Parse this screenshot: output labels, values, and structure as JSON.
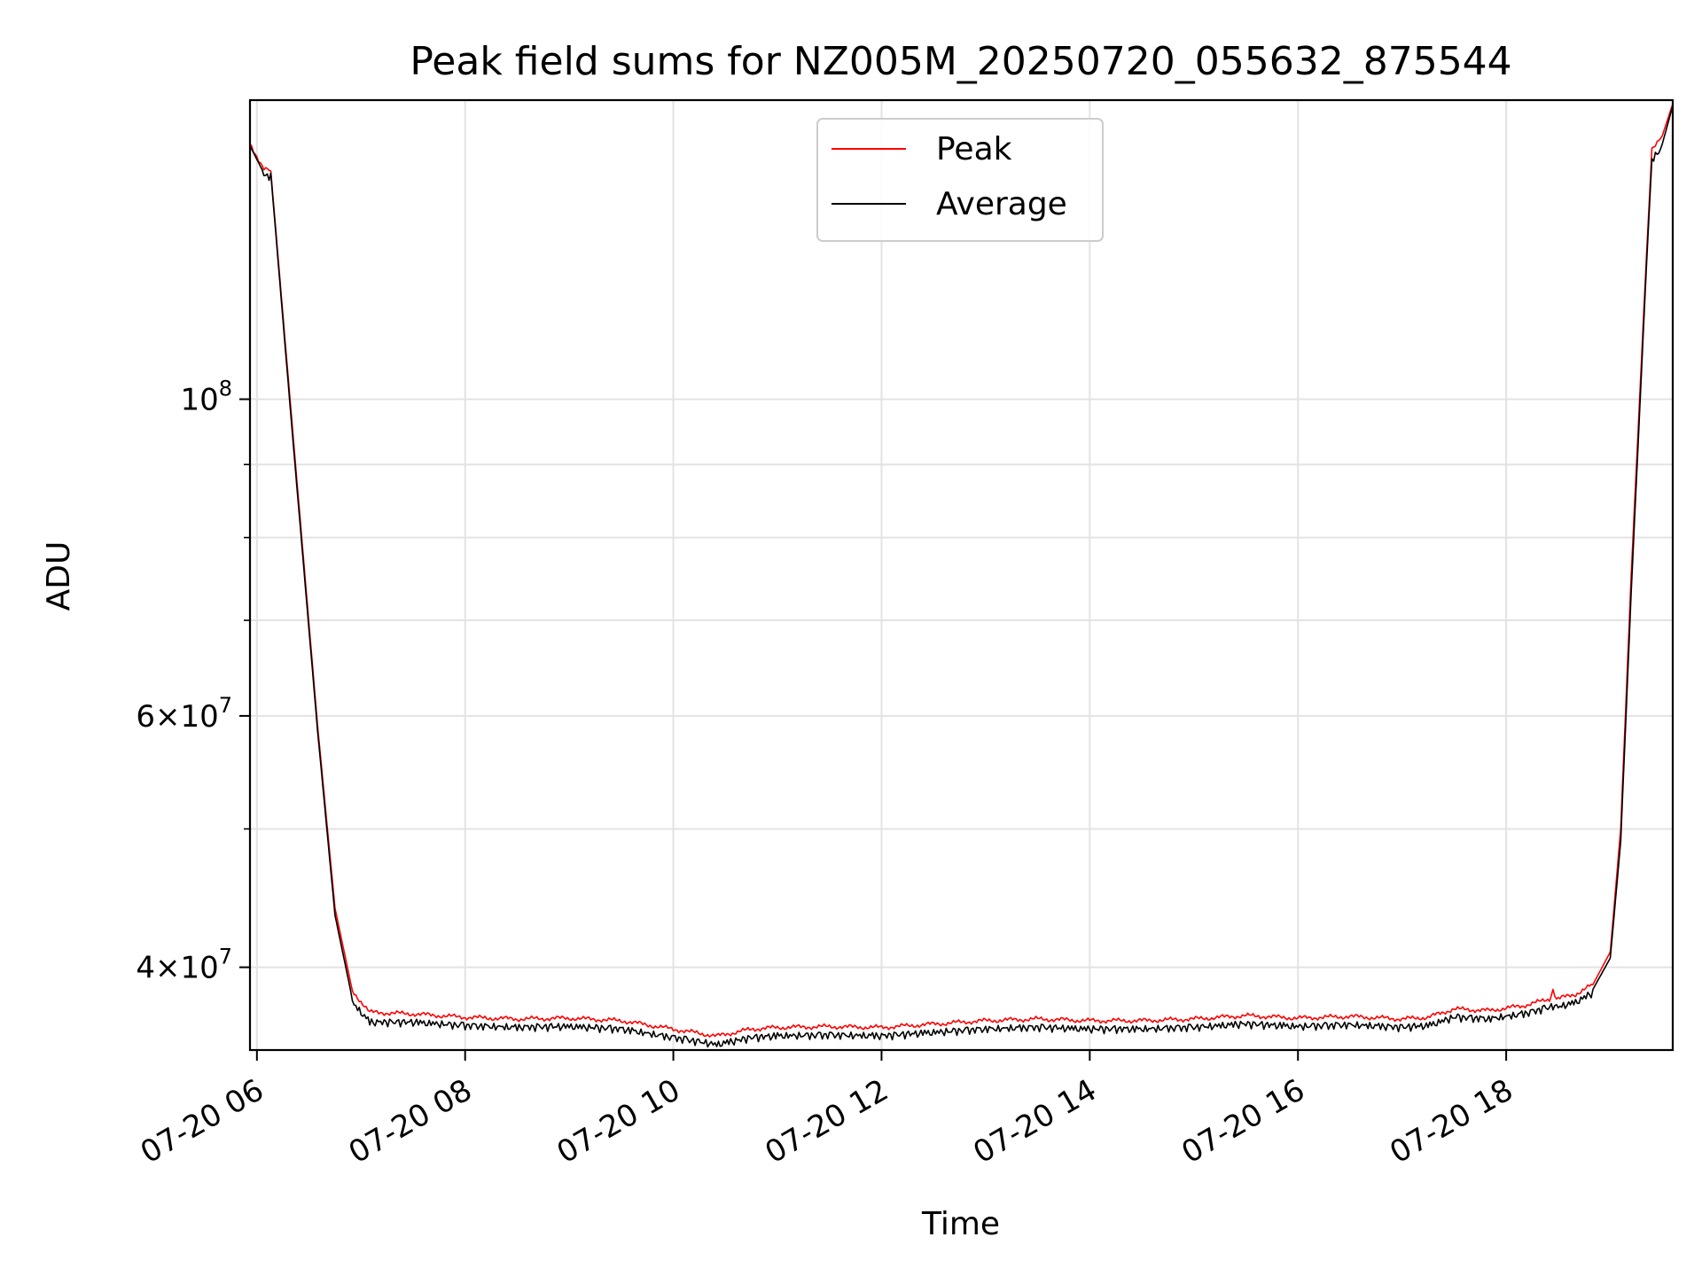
{
  "chart_data": {
    "type": "line",
    "title": "Peak field sums for NZ005M_20250720_055632_875544",
    "xlabel": "Time",
    "ylabel": "ADU",
    "x_scale": "time",
    "y_scale": "log",
    "xlim": [
      "2025-07-20 05:56",
      "2025-07-20 19:36"
    ],
    "ylim": [
      35000000,
      162000000
    ],
    "grid": true,
    "legend_position": "upper center",
    "x_ticks": [
      {
        "value": "2025-07-20 06:00",
        "label": "07-20 06"
      },
      {
        "value": "2025-07-20 08:00",
        "label": "07-20 08"
      },
      {
        "value": "2025-07-20 10:00",
        "label": "07-20 10"
      },
      {
        "value": "2025-07-20 12:00",
        "label": "07-20 12"
      },
      {
        "value": "2025-07-20 14:00",
        "label": "07-20 14"
      },
      {
        "value": "2025-07-20 16:00",
        "label": "07-20 16"
      },
      {
        "value": "2025-07-20 18:00",
        "label": "07-20 18"
      }
    ],
    "y_major_ticks": [
      {
        "value": 40000000,
        "label": "4×10^7"
      },
      {
        "value": 60000000,
        "label": "6×10^7"
      },
      {
        "value": 100000000,
        "label": "10^8"
      }
    ],
    "y_minor_ticks": [
      50000000,
      70000000,
      80000000,
      90000000
    ],
    "series": [
      {
        "name": "Peak",
        "color": "#ff0000",
        "points": [
          [
            "2025-07-20 05:56",
            151000000
          ],
          [
            "2025-07-20 06:04",
            145000000
          ],
          [
            "2025-07-20 06:08",
            144500000
          ],
          [
            "2025-07-20 06:20",
            97000000
          ],
          [
            "2025-07-20 06:35",
            59000000
          ],
          [
            "2025-07-20 06:45",
            44000000
          ],
          [
            "2025-07-20 06:55",
            38500000
          ],
          [
            "2025-07-20 07:05",
            37200000
          ],
          [
            "2025-07-20 07:30",
            37100000
          ],
          [
            "2025-07-20 08:00",
            36900000
          ],
          [
            "2025-07-20 08:30",
            36800000
          ],
          [
            "2025-07-20 09:00",
            36850000
          ],
          [
            "2025-07-20 09:30",
            36700000
          ],
          [
            "2025-07-20 10:00",
            36200000
          ],
          [
            "2025-07-20 10:25",
            35800000
          ],
          [
            "2025-07-20 10:45",
            36200000
          ],
          [
            "2025-07-20 11:00",
            36300000
          ],
          [
            "2025-07-20 11:30",
            36350000
          ],
          [
            "2025-07-20 12:00",
            36300000
          ],
          [
            "2025-07-20 12:30",
            36500000
          ],
          [
            "2025-07-20 13:00",
            36700000
          ],
          [
            "2025-07-20 13:30",
            36800000
          ],
          [
            "2025-07-20 14:00",
            36700000
          ],
          [
            "2025-07-20 14:30",
            36700000
          ],
          [
            "2025-07-20 15:00",
            36800000
          ],
          [
            "2025-07-20 15:30",
            37000000
          ],
          [
            "2025-07-20 16:00",
            36850000
          ],
          [
            "2025-07-20 16:30",
            36950000
          ],
          [
            "2025-07-20 17:00",
            36800000
          ],
          [
            "2025-07-20 17:15",
            36900000
          ],
          [
            "2025-07-20 17:30",
            37400000
          ],
          [
            "2025-07-20 17:50",
            37300000
          ],
          [
            "2025-07-20 18:10",
            37600000
          ],
          [
            "2025-07-20 18:25",
            38000000
          ],
          [
            "2025-07-20 18:27",
            38600000
          ],
          [
            "2025-07-20 18:29",
            38000000
          ],
          [
            "2025-07-20 18:40",
            38300000
          ],
          [
            "2025-07-20 18:50",
            38900000
          ],
          [
            "2025-07-20 19:00",
            41000000
          ],
          [
            "2025-07-20 19:06",
            50000000
          ],
          [
            "2025-07-20 19:12",
            75000000
          ],
          [
            "2025-07-20 19:20",
            120000000
          ],
          [
            "2025-07-20 19:24",
            150000000
          ],
          [
            "2025-07-20 19:30",
            153000000
          ],
          [
            "2025-07-20 19:36",
            161000000
          ]
        ]
      },
      {
        "name": "Average",
        "color": "#000000",
        "points": [
          [
            "2025-07-20 05:56",
            150500000
          ],
          [
            "2025-07-20 06:04",
            144000000
          ],
          [
            "2025-07-20 06:08",
            144000000
          ],
          [
            "2025-07-20 06:20",
            96000000
          ],
          [
            "2025-07-20 06:35",
            58500000
          ],
          [
            "2025-07-20 06:45",
            43500000
          ],
          [
            "2025-07-20 06:55",
            38000000
          ],
          [
            "2025-07-20 07:05",
            36800000
          ],
          [
            "2025-07-20 07:30",
            36800000
          ],
          [
            "2025-07-20 08:00",
            36600000
          ],
          [
            "2025-07-20 08:30",
            36500000
          ],
          [
            "2025-07-20 09:00",
            36550000
          ],
          [
            "2025-07-20 09:30",
            36400000
          ],
          [
            "2025-07-20 10:00",
            35900000
          ],
          [
            "2025-07-20 10:25",
            35500000
          ],
          [
            "2025-07-20 10:45",
            35900000
          ],
          [
            "2025-07-20 11:00",
            36000000
          ],
          [
            "2025-07-20 11:30",
            36050000
          ],
          [
            "2025-07-20 12:00",
            36000000
          ],
          [
            "2025-07-20 12:30",
            36200000
          ],
          [
            "2025-07-20 13:00",
            36400000
          ],
          [
            "2025-07-20 13:30",
            36500000
          ],
          [
            "2025-07-20 14:00",
            36400000
          ],
          [
            "2025-07-20 14:30",
            36400000
          ],
          [
            "2025-07-20 15:00",
            36500000
          ],
          [
            "2025-07-20 15:30",
            36700000
          ],
          [
            "2025-07-20 16:00",
            36550000
          ],
          [
            "2025-07-20 16:30",
            36650000
          ],
          [
            "2025-07-20 17:00",
            36500000
          ],
          [
            "2025-07-20 17:15",
            36600000
          ],
          [
            "2025-07-20 17:30",
            37100000
          ],
          [
            "2025-07-20 17:50",
            37000000
          ],
          [
            "2025-07-20 18:10",
            37300000
          ],
          [
            "2025-07-20 18:25",
            37700000
          ],
          [
            "2025-07-20 18:27",
            37800000
          ],
          [
            "2025-07-20 18:29",
            37700000
          ],
          [
            "2025-07-20 18:40",
            38000000
          ],
          [
            "2025-07-20 18:50",
            38600000
          ],
          [
            "2025-07-20 19:00",
            40600000
          ],
          [
            "2025-07-20 19:06",
            49000000
          ],
          [
            "2025-07-20 19:12",
            73000000
          ],
          [
            "2025-07-20 19:20",
            118000000
          ],
          [
            "2025-07-20 19:24",
            148000000
          ],
          [
            "2025-07-20 19:30",
            151000000
          ],
          [
            "2025-07-20 19:36",
            160500000
          ]
        ]
      }
    ]
  }
}
